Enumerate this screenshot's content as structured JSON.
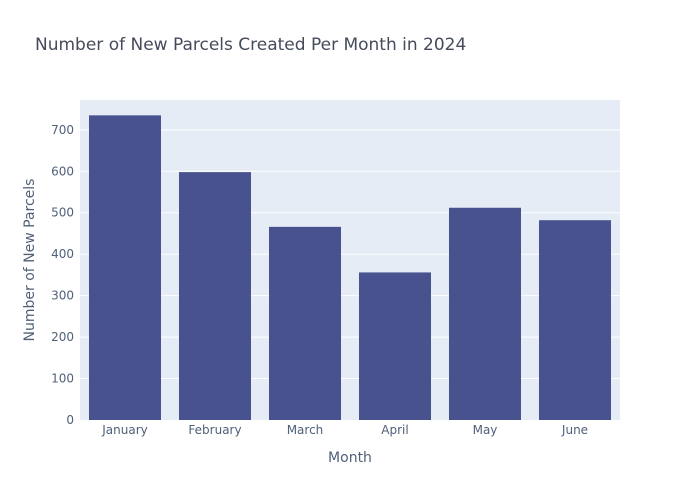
{
  "chart_data": {
    "type": "bar",
    "title": "Number of New Parcels Created Per Month in 2024",
    "xlabel": "Month",
    "ylabel": "Number of New Parcels",
    "categories": [
      "January",
      "February",
      "March",
      "April",
      "May",
      "June"
    ],
    "values": [
      735,
      598,
      466,
      356,
      512,
      482
    ],
    "ylim": [
      0,
      772
    ],
    "yticks": [
      0,
      100,
      200,
      300,
      400,
      500,
      600,
      700
    ],
    "grid": true,
    "legend": "none",
    "colors": {
      "bar": "#47528f",
      "plot_bg": "#e5ecf6",
      "grid": "#ffffff"
    }
  }
}
